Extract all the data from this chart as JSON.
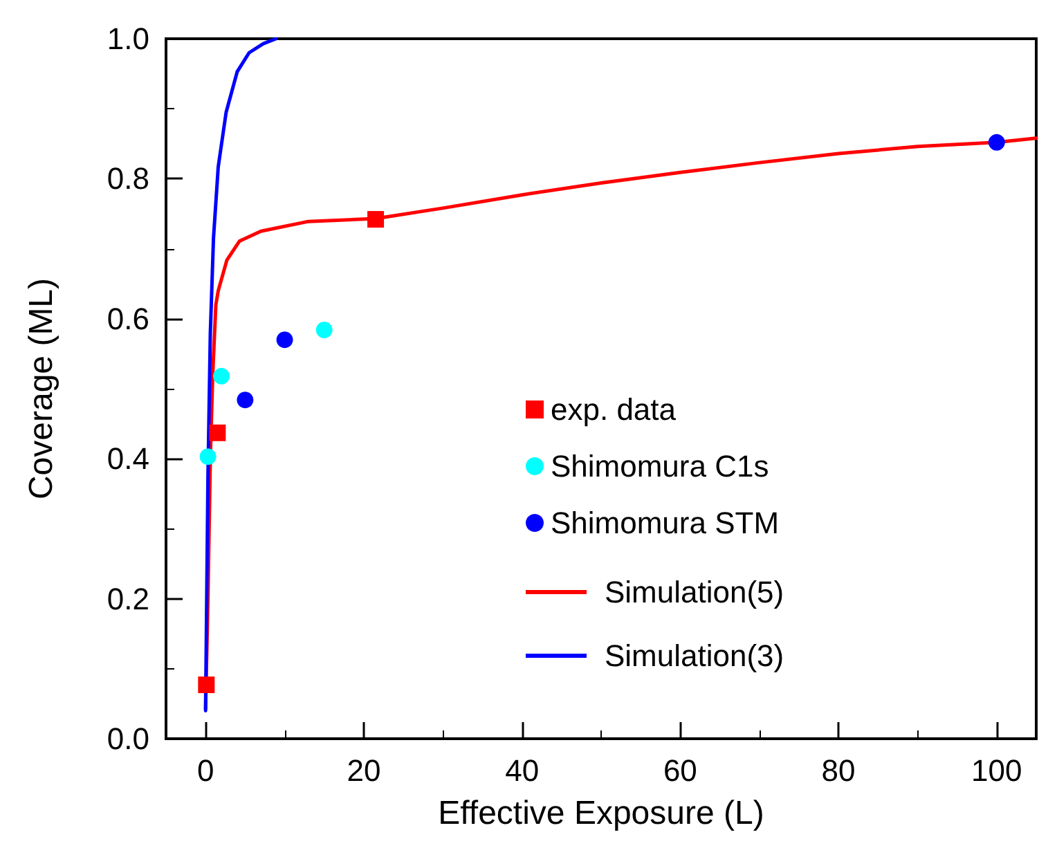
{
  "chart_data": {
    "type": "scatter",
    "xlabel": "Effective Exposure (L)",
    "ylabel": "Coverage (ML)",
    "xlim": [
      -5,
      105
    ],
    "xticks": [
      0,
      20,
      40,
      60,
      80,
      100
    ],
    "ylim": [
      0,
      1
    ],
    "yticks": [
      {
        "value": 0,
        "label": "0.0"
      },
      {
        "value": 0.2,
        "label": "0.2"
      },
      {
        "value": 0.4,
        "label": "0.4"
      },
      {
        "value": 0.6,
        "label": "0.6"
      },
      {
        "value": 0.8,
        "label": "0.8"
      },
      {
        "value": 1,
        "label": "1.0"
      }
    ],
    "grid": false,
    "legend": "right",
    "series": [
      {
        "name": "exp. data",
        "marker": "square",
        "color": "#ff0000",
        "x": [
          0.1,
          1.5,
          21.5
        ],
        "values": [
          0.077,
          0.437,
          0.742
        ]
      },
      {
        "name": "Shimomura C1s",
        "marker": "circle",
        "color": "#00ffff",
        "x": [
          0.3,
          2.0,
          15.0
        ],
        "values": [
          0.403,
          0.518,
          0.584
        ]
      },
      {
        "name": "Shimomura STM",
        "marker": "circle",
        "color": "#0000ff",
        "x": [
          5.0,
          10.0,
          100
        ],
        "values": [
          0.484,
          0.57,
          0.852
        ]
      },
      {
        "name": "Simulation(5)",
        "type": "line",
        "marker": "none",
        "line_style": "solid",
        "color": "#ff0000",
        "x": [
          0,
          0.3,
          0.6,
          0.9,
          1.3,
          1.6,
          2.7,
          4.3,
          7,
          13,
          21.5,
          30,
          40,
          50,
          60,
          70,
          80,
          90,
          100,
          105
        ],
        "values": [
          0.043,
          0.2,
          0.4,
          0.52,
          0.62,
          0.64,
          0.684,
          0.711,
          0.725,
          0.739,
          0.743,
          0.758,
          0.777,
          0.794,
          0.809,
          0.823,
          0.836,
          0.846,
          0.852,
          0.858
        ]
      },
      {
        "name": "Simulation(3)",
        "type": "line",
        "marker": "none",
        "line_style": "solid",
        "color": "#0000ff",
        "x": [
          0,
          0.3,
          0.6,
          1.0,
          1.6,
          2.6,
          4.0,
          5.5,
          7.3,
          8.9
        ],
        "values": [
          0.04,
          0.374,
          0.579,
          0.715,
          0.817,
          0.895,
          0.953,
          0.98,
          0.993,
          1.0
        ]
      }
    ]
  }
}
